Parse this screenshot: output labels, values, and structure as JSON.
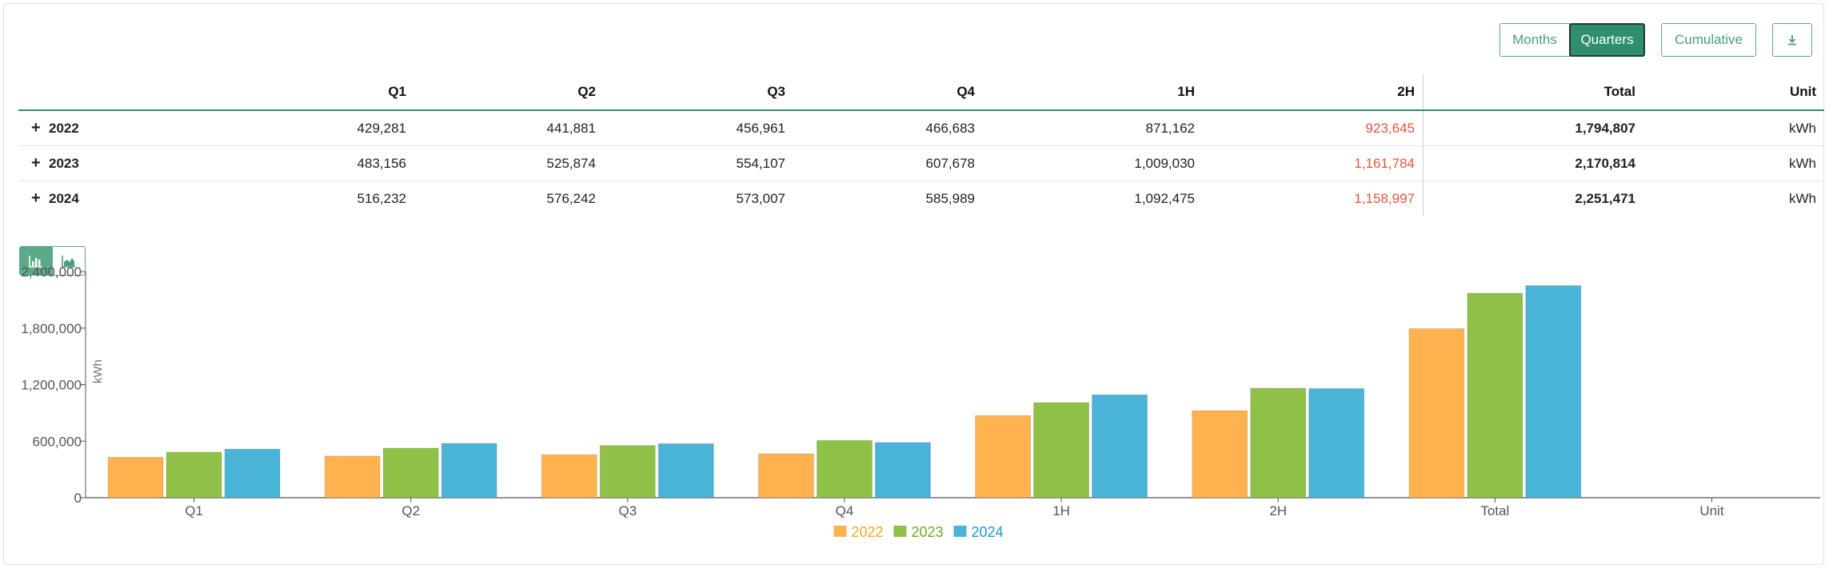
{
  "toolbar": {
    "months_label": "Months",
    "quarters_label": "Quarters",
    "cumulative_label": "Cumulative",
    "download_icon": "download-icon"
  },
  "table": {
    "headers": [
      "",
      "Q1",
      "Q2",
      "Q3",
      "Q4",
      "1H",
      "2H",
      "Total",
      "Unit"
    ],
    "rows": [
      {
        "year": "2022",
        "q1": "429,281",
        "q2": "441,881",
        "q3": "456,961",
        "q4": "466,683",
        "h1": "871,162",
        "h2": "923,645",
        "total": "1,794,807",
        "unit": "kWh"
      },
      {
        "year": "2023",
        "q1": "483,156",
        "q2": "525,874",
        "q3": "554,107",
        "q4": "607,678",
        "h1": "1,009,030",
        "h2": "1,161,784",
        "total": "2,170,814",
        "unit": "kWh"
      },
      {
        "year": "2024",
        "q1": "516,232",
        "q2": "576,242",
        "q3": "573,007",
        "q4": "585,989",
        "h1": "1,092,475",
        "h2": "1,158,997",
        "total": "2,251,471",
        "unit": "kWh"
      }
    ],
    "expand_icon": "plus-icon",
    "highlight_color": "#e5533d"
  },
  "chart_toggle": {
    "bar_icon": "bar-chart-icon",
    "area_icon": "area-chart-icon"
  },
  "chart_data": {
    "type": "bar",
    "categories": [
      "Q1",
      "Q2",
      "Q3",
      "Q4",
      "1H",
      "2H",
      "Total",
      "Unit"
    ],
    "series": [
      {
        "name": "2022",
        "color": "#ffb24d",
        "values": [
          429281,
          441881,
          456961,
          466683,
          871162,
          923645,
          1794807,
          null
        ]
      },
      {
        "name": "2023",
        "color": "#8fc148",
        "values": [
          483156,
          525874,
          554107,
          607678,
          1009030,
          1161784,
          2170814,
          null
        ]
      },
      {
        "name": "2024",
        "color": "#4ab3d8",
        "values": [
          516232,
          576242,
          573007,
          585989,
          1092475,
          1158997,
          2251471,
          null
        ]
      }
    ],
    "legend_text_colors": [
      "#f5a623",
      "#6aab1f",
      "#1a9bc8"
    ],
    "ylabel": "kWh",
    "ylim": [
      0,
      2400000
    ],
    "yticks": [
      0,
      600000,
      1200000,
      1800000,
      2400000
    ],
    "ytick_labels": [
      "0",
      "600,000",
      "1,200,000",
      "1,800,000",
      "2,400,000"
    ],
    "legend_position": "bottom-center"
  }
}
